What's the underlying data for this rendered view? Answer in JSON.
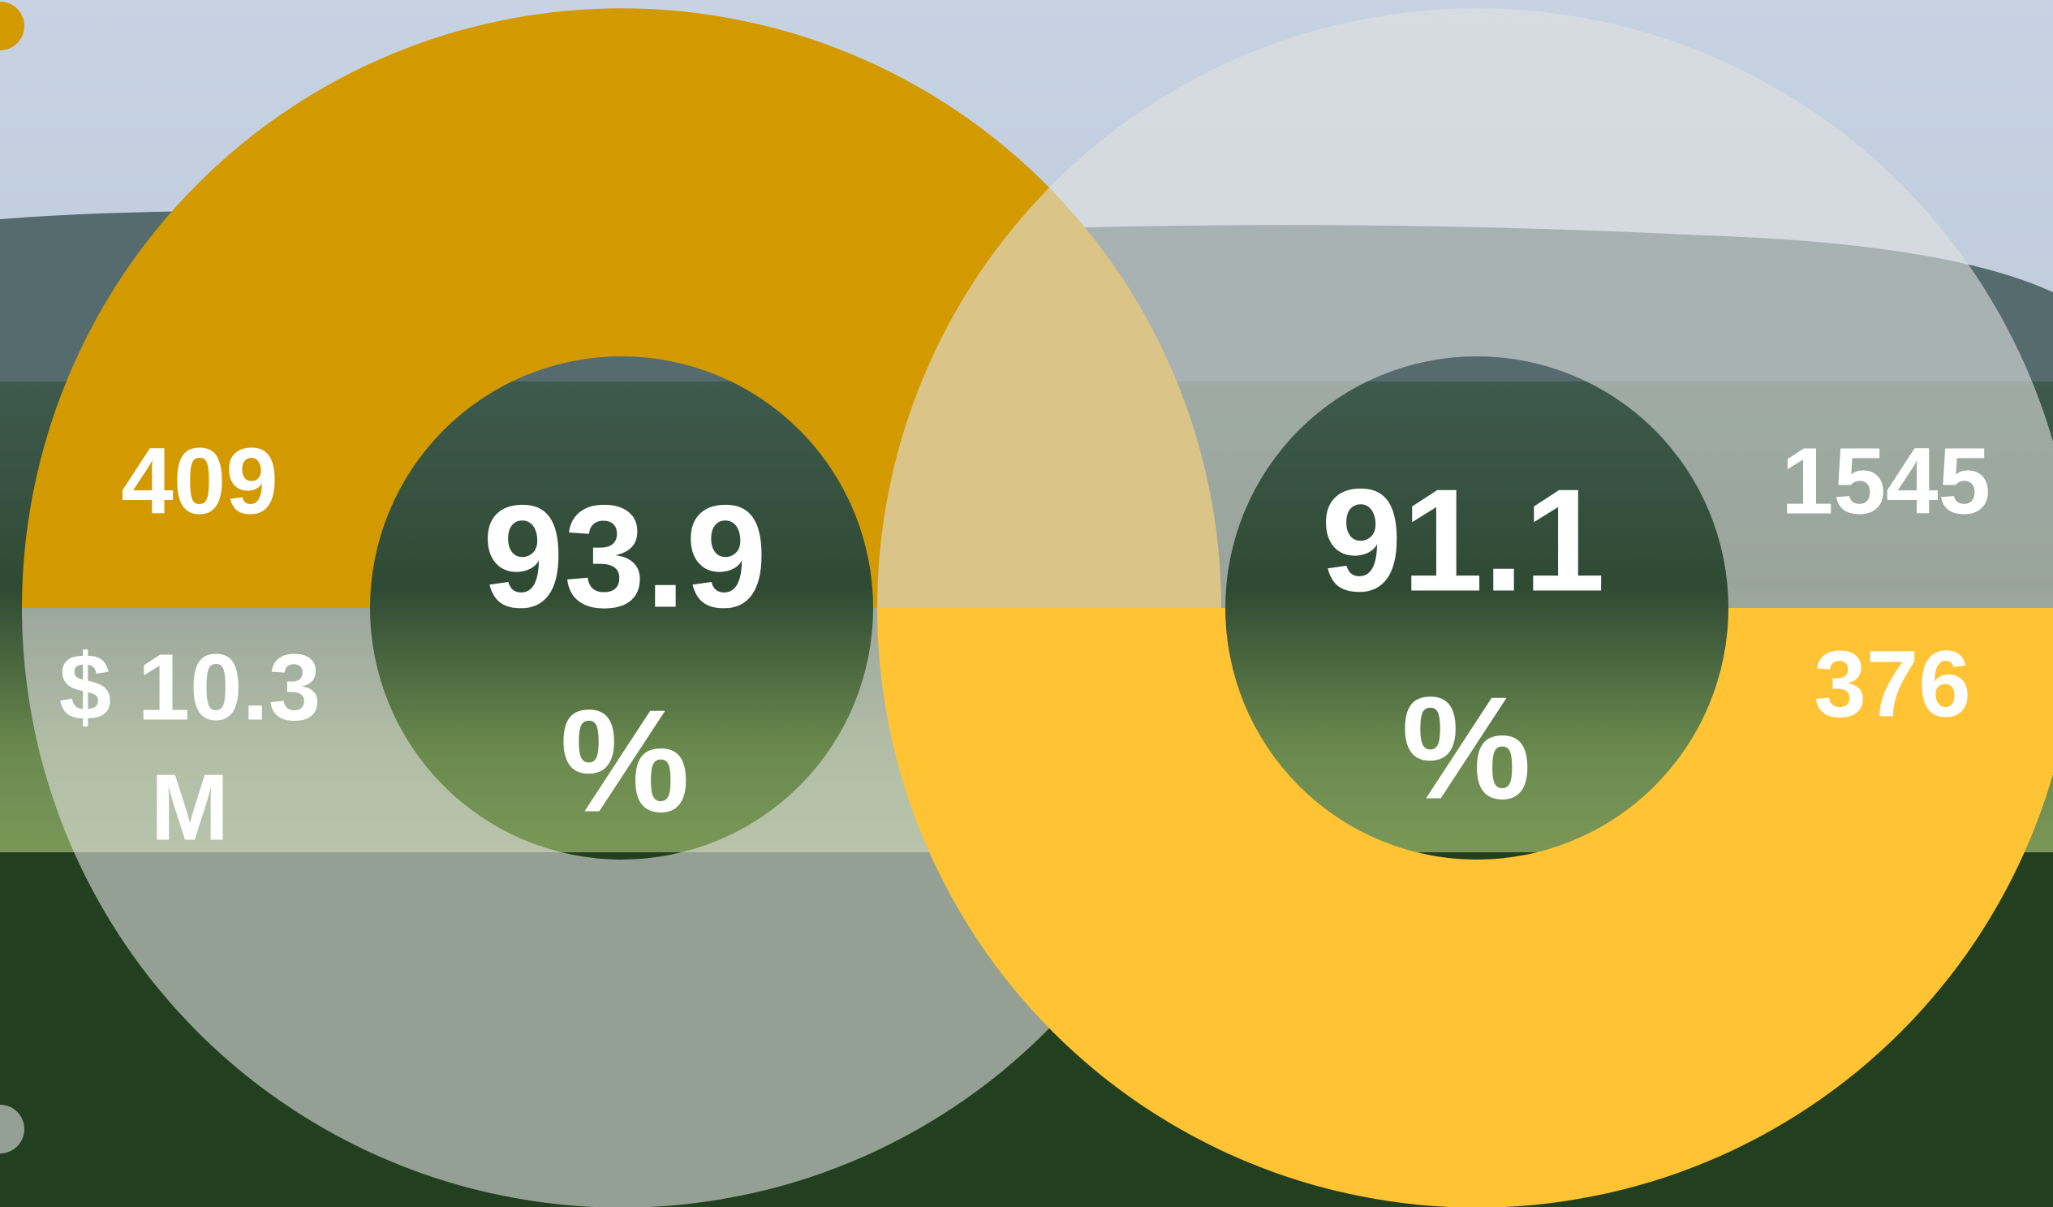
{
  "left_ring": {
    "top_label": "409",
    "bottom_label": [
      "$ 10.3",
      "M"
    ],
    "center": [
      "93.9",
      "%"
    ]
  },
  "right_ring": {
    "top_label": "1545",
    "bottom_label": "376",
    "center": [
      "91.1",
      "%"
    ]
  }
}
